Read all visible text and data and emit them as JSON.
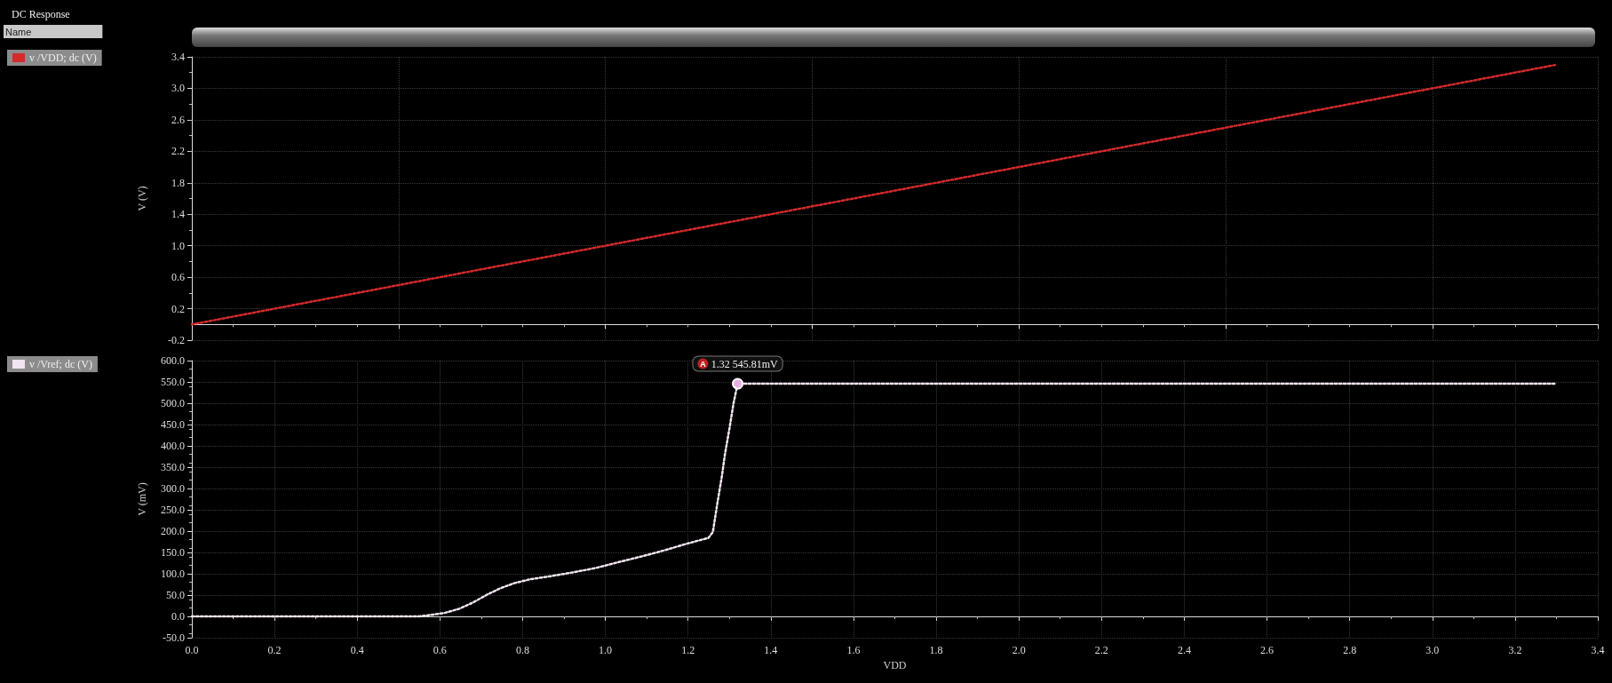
{
  "chart_data": [
    {
      "type": "line",
      "annotations": [
        "DC Response",
        "Name"
      ],
      "ylabel": "V (V)",
      "x": [
        0,
        3.3
      ],
      "series": [
        {
          "name": "v /VDD; dc (V)",
          "color": "#d42a2a",
          "values": [
            0,
            3.3
          ]
        }
      ],
      "xlim": [
        0,
        3.4
      ],
      "ylim": [
        -0.2,
        3.4
      ],
      "yticks": [
        -0.2,
        0.2,
        0.6,
        {
          "value": 1.0,
          "label": "1.0"
        },
        1.4,
        1.8,
        2.2,
        2.6,
        {
          "value": 3.0,
          "label": "3.0"
        },
        3.4
      ],
      "tick_labels": "y",
      "grid": true,
      "legend": "left",
      "line_style": "dotted",
      "marker": "none"
    },
    {
      "type": "line",
      "xlabel": "VDD",
      "ylabel": "V (mV)",
      "annotations": [
        "A",
        {
          "text": "1.32 545.81mV",
          "x": 1.32,
          "y": 545.81
        }
      ],
      "x": [
        0,
        0.55,
        0.575,
        0.611,
        0.647,
        0.681,
        0.712,
        0.746,
        0.78,
        0.818,
        0.872,
        0.926,
        0.979,
        1.035,
        1.089,
        1.143,
        1.195,
        1.249,
        1.26,
        1.271,
        1.282,
        1.289,
        1.3,
        1.31,
        1.32,
        3.3
      ],
      "series": [
        {
          "name": "v /Vref; dc (V)",
          "color": "#f2e4f0",
          "values": [
            0,
            0,
            3,
            8,
            18,
            33,
            50,
            66,
            78,
            87,
            95,
            104,
            114,
            128,
            141,
            155,
            170,
            184,
            198,
            266,
            330,
            379,
            440,
            500,
            545.81,
            545.81
          ]
        }
      ],
      "xlim": [
        0,
        3.4
      ],
      "xticks": [
        {
          "value": 0,
          "label": "0.0"
        },
        0.2,
        0.4,
        0.6,
        0.8,
        {
          "value": 1,
          "label": "1.0"
        },
        1.2,
        1.4,
        1.6,
        1.8,
        {
          "value": 2,
          "label": "2.0"
        },
        2.2,
        2.4,
        2.6,
        2.8,
        {
          "value": 3,
          "label": "3.0"
        },
        3.2,
        3.4
      ],
      "ylim": [
        -50,
        600
      ],
      "yticks": [
        {
          "value": -50,
          "label": "-50.0"
        },
        {
          "value": 0,
          "label": "0.0"
        },
        {
          "value": 50,
          "label": "50.0"
        },
        {
          "value": 100,
          "label": "100.0"
        },
        {
          "value": 150,
          "label": "150.0"
        },
        {
          "value": 200,
          "label": "200.0"
        },
        {
          "value": 250,
          "label": "250.0"
        },
        {
          "value": 300,
          "label": "300.0"
        },
        {
          "value": 350,
          "label": "350.0"
        },
        {
          "value": 400,
          "label": "400.0"
        },
        {
          "value": 450,
          "label": "450.0"
        },
        {
          "value": 500,
          "label": "500.0"
        },
        {
          "value": 550,
          "label": "550.0"
        },
        {
          "value": 600,
          "label": "600.0"
        }
      ],
      "grid": true,
      "legend": "left",
      "line_style": "dotted",
      "marker": "none"
    }
  ]
}
